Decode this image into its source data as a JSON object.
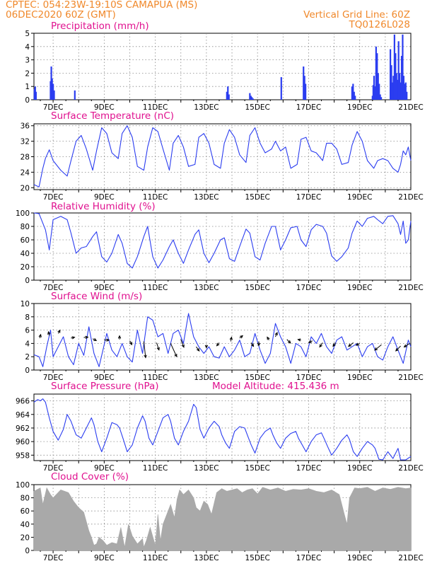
{
  "header": {
    "station": "CPTEC:   054:23W-19:10S   CAMAPUA (MS)",
    "run": "06DEC2020 60Z (GMT)",
    "grid_note": "Vertical Grid Line: 60Z",
    "code": "TQ0126L028"
  },
  "model_altitude": "Model Altitude: 415.436 m",
  "colors": {
    "header": "#f0882a",
    "titles": "#e0118f",
    "line": "#2b3df0",
    "cloud": "#a9a9a9",
    "arrow": "#000000"
  },
  "x_axis": {
    "ticks": [
      "7DEC",
      "9DEC",
      "11DEC",
      "13DEC",
      "15DEC",
      "17DEC",
      "19DEC",
      "21DEC"
    ],
    "tick_days": [
      7,
      9,
      11,
      13,
      15,
      17,
      19,
      21
    ],
    "domain": [
      6.25,
      21.0
    ]
  },
  "chart_data": [
    {
      "id": "precip",
      "type": "bar",
      "title": "Precipitation (mm/h)",
      "ylim": [
        0,
        5
      ],
      "yticks": [
        "0",
        "1",
        "2",
        "3",
        "4",
        "5"
      ],
      "grid": true,
      "x": [
        6.27,
        6.3,
        6.33,
        6.9,
        6.93,
        6.96,
        7.0,
        7.04,
        7.85,
        13.8,
        13.84,
        13.88,
        14.7,
        14.74,
        14.78,
        14.82,
        15.93,
        16.8,
        16.84,
        16.88,
        18.7,
        18.74,
        18.78,
        18.82,
        19.5,
        19.53,
        19.56,
        19.6,
        19.64,
        19.68,
        19.72,
        19.76,
        19.8,
        19.84,
        20.2,
        20.24,
        20.28,
        20.32,
        20.36,
        20.4,
        20.44,
        20.48,
        20.52,
        20.56,
        20.6,
        20.64,
        20.68,
        20.72,
        20.76,
        20.8,
        20.84
      ],
      "values": [
        0.8,
        1.0,
        0.6,
        1.4,
        2.5,
        1.6,
        1.2,
        0.7,
        0.7,
        0.6,
        1.0,
        0.4,
        0.5,
        0.3,
        0.2,
        0.1,
        1.7,
        2.5,
        1.8,
        1.2,
        1.0,
        1.2,
        0.6,
        0.3,
        0.3,
        1.1,
        1.8,
        1.0,
        4.0,
        3.5,
        2.0,
        1.2,
        0.4,
        0.2,
        3.8,
        2.6,
        1.3,
        1.8,
        4.9,
        3.5,
        2.0,
        1.5,
        4.4,
        2.0,
        1.3,
        3.3,
        4.9,
        1.8,
        1.2,
        1.3,
        0.6
      ]
    },
    {
      "id": "temp",
      "type": "line",
      "title": "Surface Temperature (nC)",
      "ylim": [
        19.5,
        36.5
      ],
      "ytick_values": [
        20,
        24,
        28,
        32,
        36
      ],
      "yticks": [
        "20",
        "24",
        "28",
        "32",
        "36"
      ],
      "grid": true,
      "x": [
        6.25,
        6.45,
        6.6,
        6.7,
        6.85,
        7.0,
        7.3,
        7.55,
        7.7,
        7.9,
        8.1,
        8.3,
        8.55,
        8.7,
        8.9,
        9.1,
        9.3,
        9.55,
        9.7,
        9.9,
        10.1,
        10.3,
        10.55,
        10.7,
        10.9,
        11.1,
        11.3,
        11.55,
        11.7,
        11.9,
        12.1,
        12.3,
        12.55,
        12.7,
        12.9,
        13.1,
        13.3,
        13.55,
        13.7,
        13.9,
        14.1,
        14.3,
        14.55,
        14.7,
        14.9,
        15.1,
        15.3,
        15.55,
        15.7,
        15.9,
        16.1,
        16.3,
        16.55,
        16.7,
        16.9,
        17.1,
        17.3,
        17.55,
        17.7,
        17.9,
        18.1,
        18.3,
        18.55,
        18.7,
        18.9,
        19.1,
        19.3,
        19.55,
        19.7,
        19.9,
        20.1,
        20.3,
        20.5,
        20.6,
        20.7,
        20.8,
        20.9,
        21.0
      ],
      "values": [
        20.8,
        20.2,
        25.0,
        27.6,
        29.8,
        27.0,
        24.5,
        23.0,
        27.0,
        32.0,
        33.5,
        30.0,
        24.5,
        29.5,
        35.5,
        34.0,
        29.0,
        27.5,
        34.0,
        36.0,
        33.0,
        25.5,
        24.5,
        30.5,
        35.5,
        34.5,
        30.0,
        24.5,
        31.5,
        33.5,
        30.5,
        25.5,
        26.0,
        33.0,
        34.0,
        31.5,
        26.0,
        25.0,
        31.5,
        35.0,
        33.0,
        28.5,
        26.5,
        33.5,
        35.5,
        31.5,
        29.0,
        30.0,
        32.0,
        29.5,
        30.5,
        25.0,
        26.0,
        32.5,
        33.0,
        29.5,
        29.0,
        27.0,
        31.5,
        31.5,
        30.0,
        26.0,
        26.5,
        31.0,
        34.5,
        32.0,
        27.0,
        25.0,
        27.0,
        27.5,
        27.0,
        25.0,
        24.0,
        26.0,
        29.5,
        28.5,
        30.5,
        27.0
      ]
    },
    {
      "id": "rh",
      "type": "line",
      "title": "Relative Humidity (%)",
      "ylim": [
        0,
        100
      ],
      "yticks": [
        "0",
        "20",
        "40",
        "60",
        "80",
        "100"
      ],
      "grid": true,
      "x": [
        6.25,
        6.45,
        6.7,
        6.85,
        7.0,
        7.3,
        7.55,
        7.7,
        7.9,
        8.1,
        8.3,
        8.55,
        8.7,
        8.9,
        9.1,
        9.3,
        9.55,
        9.7,
        9.9,
        10.1,
        10.3,
        10.55,
        10.7,
        10.9,
        11.1,
        11.3,
        11.55,
        11.7,
        11.9,
        12.1,
        12.3,
        12.55,
        12.7,
        12.9,
        13.1,
        13.3,
        13.55,
        13.7,
        13.9,
        14.1,
        14.3,
        14.55,
        14.7,
        14.9,
        15.1,
        15.3,
        15.55,
        15.7,
        15.9,
        16.1,
        16.3,
        16.55,
        16.7,
        16.9,
        17.1,
        17.3,
        17.55,
        17.7,
        17.9,
        18.1,
        18.3,
        18.55,
        18.7,
        18.9,
        19.1,
        19.3,
        19.55,
        19.7,
        19.9,
        20.1,
        20.3,
        20.5,
        20.6,
        20.7,
        20.8,
        20.9,
        21.0
      ],
      "values": [
        100,
        99,
        75,
        45,
        90,
        95,
        90,
        70,
        40,
        48,
        50,
        65,
        72,
        35,
        27,
        40,
        68,
        55,
        25,
        18,
        35,
        65,
        80,
        35,
        18,
        30,
        50,
        60,
        40,
        25,
        45,
        68,
        75,
        40,
        26,
        40,
        60,
        63,
        32,
        28,
        50,
        76,
        70,
        35,
        30,
        55,
        80,
        80,
        45,
        60,
        78,
        80,
        60,
        50,
        75,
        83,
        80,
        70,
        36,
        28,
        35,
        48,
        70,
        88,
        80,
        92,
        95,
        90,
        84,
        95,
        96,
        84,
        68,
        88,
        55,
        60,
        88
      ]
    },
    {
      "id": "wind",
      "type": "line",
      "title": "Surface Wind (m/s)",
      "ylim": [
        0,
        10
      ],
      "yticks": [
        "0",
        "2",
        "4",
        "6",
        "8",
        "10"
      ],
      "grid": true,
      "x": [
        6.25,
        6.45,
        6.6,
        6.75,
        6.9,
        7.0,
        7.2,
        7.4,
        7.6,
        7.8,
        8.0,
        8.2,
        8.4,
        8.6,
        8.8,
        8.95,
        9.1,
        9.3,
        9.5,
        9.7,
        9.9,
        10.1,
        10.3,
        10.5,
        10.7,
        10.9,
        11.1,
        11.3,
        11.5,
        11.7,
        11.9,
        12.1,
        12.3,
        12.5,
        12.7,
        12.9,
        13.1,
        13.3,
        13.5,
        13.7,
        13.9,
        14.1,
        14.3,
        14.5,
        14.7,
        14.9,
        15.1,
        15.3,
        15.5,
        15.7,
        15.9,
        16.1,
        16.3,
        16.5,
        16.7,
        16.9,
        17.1,
        17.3,
        17.5,
        17.7,
        17.9,
        18.1,
        18.3,
        18.5,
        18.7,
        18.9,
        19.1,
        19.3,
        19.5,
        19.7,
        19.9,
        20.1,
        20.3,
        20.5,
        20.7,
        20.9,
        21.0
      ],
      "values": [
        2.3,
        2.0,
        0.5,
        3.5,
        6.0,
        2.0,
        3.5,
        5.0,
        2.0,
        0.8,
        4.0,
        2.2,
        6.5,
        2.5,
        0.5,
        3.0,
        5.5,
        3.0,
        2.0,
        4.0,
        2.0,
        1.2,
        6.0,
        2.5,
        8.0,
        7.5,
        5.0,
        5.5,
        2.5,
        5.5,
        6.0,
        4.0,
        8.5,
        5.0,
        3.5,
        2.5,
        3.5,
        2.0,
        1.8,
        3.5,
        2.0,
        3.0,
        4.5,
        2.0,
        2.5,
        5.5,
        3.0,
        1.0,
        2.5,
        7.0,
        5.0,
        3.5,
        1.0,
        4.0,
        3.5,
        2.0,
        5.0,
        4.0,
        5.5,
        3.5,
        2.5,
        4.5,
        5.0,
        3.0,
        3.5,
        4.0,
        2.0,
        3.5,
        4.0,
        2.0,
        1.5,
        3.5,
        5.0,
        3.0,
        1.0,
        4.5,
        3.5
      ],
      "vectors": [
        {
          "x": 6.48,
          "y": 4.8,
          "u": 0.15,
          "v": 0.6
        },
        {
          "x": 6.85,
          "y": 5.2,
          "u": -0.15,
          "v": 0.6
        },
        {
          "x": 7.2,
          "y": 5.5,
          "u": 0.3,
          "v": 0.55
        },
        {
          "x": 7.7,
          "y": 4.8,
          "u": 0.6,
          "v": 0.15
        },
        {
          "x": 8.2,
          "y": 4.9,
          "u": 0.7,
          "v": 0.05
        },
        {
          "x": 8.55,
          "y": 4.7,
          "u": 0.6,
          "v": -0.3
        },
        {
          "x": 9.0,
          "y": 4.5,
          "u": 0.8,
          "v": 0.0
        },
        {
          "x": 9.6,
          "y": 4.6,
          "u": 0.0,
          "v": 0.6
        },
        {
          "x": 10.0,
          "y": 4.4,
          "u": 0.35,
          "v": -0.65
        },
        {
          "x": 10.55,
          "y": 4.3,
          "u": 0.3,
          "v": -2.7
        },
        {
          "x": 11.05,
          "y": 4.1,
          "u": 0.4,
          "v": -1.2
        },
        {
          "x": 11.6,
          "y": 4.0,
          "u": 1.0,
          "v": -2.2
        },
        {
          "x": 12.0,
          "y": 4.6,
          "u": 0.5,
          "v": -1.3
        },
        {
          "x": 12.6,
          "y": 3.5,
          "u": 0.5,
          "v": -0.7
        },
        {
          "x": 13.0,
          "y": 3.8,
          "u": 0.0,
          "v": -0.5
        },
        {
          "x": 13.5,
          "y": 4.1,
          "u": -0.4,
          "v": -0.5
        },
        {
          "x": 13.95,
          "y": 4.3,
          "u": 0.15,
          "v": 0.7
        },
        {
          "x": 14.3,
          "y": 4.8,
          "u": 0.5,
          "v": 0.4
        },
        {
          "x": 14.75,
          "y": 4.1,
          "u": 0.4,
          "v": -0.6
        },
        {
          "x": 15.05,
          "y": 4.3,
          "u": 0.0,
          "v": -0.7
        },
        {
          "x": 15.45,
          "y": 4.5,
          "u": -0.3,
          "v": 0.5
        },
        {
          "x": 15.7,
          "y": 5.0,
          "u": 0.3,
          "v": 0.7
        },
        {
          "x": 16.15,
          "y": 4.6,
          "u": 0.6,
          "v": -0.6
        },
        {
          "x": 16.7,
          "y": 4.5,
          "u": -0.5,
          "v": 0.1
        },
        {
          "x": 17.15,
          "y": 4.4,
          "u": -0.6,
          "v": -0.3
        },
        {
          "x": 17.55,
          "y": 4.1,
          "u": -0.5,
          "v": -0.7
        },
        {
          "x": 18.05,
          "y": 4.1,
          "u": -0.4,
          "v": -0.6
        },
        {
          "x": 18.75,
          "y": 4.1,
          "u": -0.8,
          "v": -0.6
        },
        {
          "x": 19.0,
          "y": 4.0,
          "u": -0.6,
          "v": -0.3
        },
        {
          "x": 19.85,
          "y": 3.8,
          "u": -1.1,
          "v": -0.9
        },
        {
          "x": 20.6,
          "y": 3.6,
          "u": -0.8,
          "v": -0.8
        },
        {
          "x": 20.95,
          "y": 4.0,
          "u": -0.9,
          "v": -0.6
        }
      ]
    },
    {
      "id": "pressure",
      "type": "line",
      "title": "Surface Pressure (hPa)",
      "ylim": [
        957.2,
        967
      ],
      "ytick_values": [
        958,
        960,
        962,
        964,
        966
      ],
      "yticks": [
        "958",
        "960",
        "962",
        "964",
        "966"
      ],
      "grid": true,
      "x": [
        6.25,
        6.4,
        6.5,
        6.6,
        6.7,
        6.85,
        7.0,
        7.2,
        7.4,
        7.55,
        7.7,
        7.9,
        8.1,
        8.3,
        8.5,
        8.6,
        8.75,
        8.9,
        9.1,
        9.3,
        9.5,
        9.6,
        9.75,
        9.9,
        10.1,
        10.3,
        10.5,
        10.6,
        10.75,
        10.9,
        11.1,
        11.3,
        11.5,
        11.6,
        11.75,
        11.9,
        12.1,
        12.3,
        12.5,
        12.6,
        12.75,
        12.9,
        13.1,
        13.3,
        13.5,
        13.6,
        13.75,
        13.9,
        14.1,
        14.3,
        14.5,
        14.6,
        14.75,
        14.9,
        15.1,
        15.3,
        15.5,
        15.6,
        15.75,
        15.9,
        16.1,
        16.3,
        16.5,
        16.6,
        16.75,
        16.9,
        17.1,
        17.3,
        17.5,
        17.6,
        17.75,
        17.9,
        18.1,
        18.3,
        18.5,
        18.6,
        18.75,
        18.9,
        19.1,
        19.3,
        19.5,
        19.6,
        19.75,
        19.9,
        20.1,
        20.3,
        20.5,
        20.6,
        20.8,
        21.0
      ],
      "values": [
        965.8,
        966.2,
        966.0,
        966.3,
        965.8,
        963.5,
        961.5,
        960.2,
        961.8,
        964.0,
        963.0,
        961.0,
        960.5,
        962.0,
        963.5,
        962.5,
        960.0,
        958.5,
        960.5,
        962.8,
        962.5,
        962.0,
        960.3,
        958.5,
        959.5,
        962.0,
        963.8,
        963.0,
        960.5,
        959.5,
        961.5,
        963.5,
        964.0,
        963.0,
        960.5,
        959.5,
        961.5,
        963.0,
        965.5,
        965.0,
        961.8,
        960.5,
        962.0,
        963.0,
        962.2,
        961.0,
        959.8,
        959.0,
        961.5,
        962.2,
        962.0,
        961.0,
        959.5,
        958.3,
        960.5,
        961.5,
        962.0,
        961.0,
        959.8,
        959.0,
        960.5,
        961.2,
        961.5,
        960.5,
        959.5,
        958.5,
        960.0,
        961.0,
        961.3,
        960.5,
        959.2,
        958.0,
        959.0,
        960.2,
        961.0,
        960.3,
        958.5,
        957.8,
        959.0,
        960.0,
        959.5,
        959.0,
        957.4,
        957.3,
        958.5,
        957.5,
        959.0,
        957.3,
        957.3,
        957.8
      ]
    },
    {
      "id": "cloud",
      "type": "area",
      "title": "Cloud Cover (%)",
      "ylim": [
        0,
        100
      ],
      "yticks": [
        "0",
        "20",
        "40",
        "60",
        "80",
        "100"
      ],
      "grid": true,
      "x": [
        6.25,
        6.5,
        6.6,
        6.75,
        6.9,
        7.0,
        7.3,
        7.6,
        7.8,
        8.0,
        8.2,
        8.4,
        8.5,
        8.6,
        8.7,
        8.8,
        8.95,
        9.1,
        9.3,
        9.5,
        9.65,
        9.8,
        9.95,
        10.1,
        10.3,
        10.5,
        10.55,
        10.65,
        10.8,
        11.0,
        11.1,
        11.2,
        11.3,
        11.45,
        11.6,
        11.75,
        11.85,
        11.95,
        12.1,
        12.3,
        12.5,
        12.6,
        12.75,
        12.9,
        13.05,
        13.2,
        13.4,
        13.6,
        13.8,
        14.0,
        14.2,
        14.4,
        14.6,
        14.8,
        15.0,
        15.2,
        15.5,
        15.8,
        16.1,
        16.4,
        16.7,
        17.0,
        17.3,
        17.6,
        17.9,
        18.2,
        18.4,
        18.5,
        18.6,
        18.8,
        19.0,
        19.3,
        19.6,
        19.9,
        20.2,
        20.5,
        20.8,
        21.0
      ],
      "values": [
        90,
        95,
        70,
        95,
        85,
        80,
        92,
        88,
        75,
        65,
        58,
        30,
        20,
        8,
        10,
        20,
        15,
        8,
        12,
        10,
        35,
        5,
        40,
        22,
        10,
        18,
        5,
        15,
        35,
        8,
        55,
        15,
        40,
        55,
        70,
        50,
        78,
        92,
        85,
        92,
        80,
        65,
        60,
        75,
        70,
        55,
        88,
        94,
        90,
        92,
        94,
        88,
        92,
        94,
        86,
        96,
        92,
        95,
        90,
        93,
        92,
        94,
        90,
        88,
        92,
        85,
        55,
        40,
        80,
        95,
        94,
        96,
        90,
        95,
        93,
        96,
        94,
        95
      ]
    }
  ]
}
